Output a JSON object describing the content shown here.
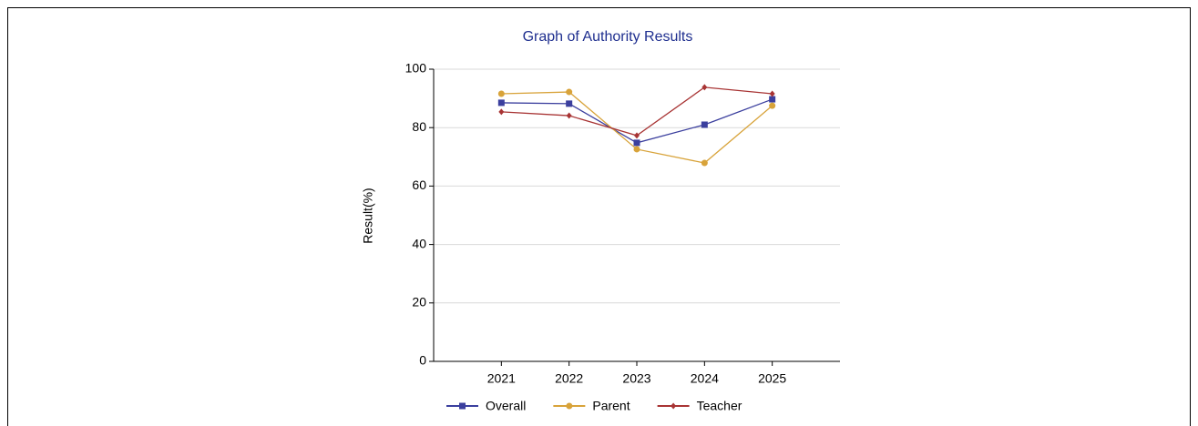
{
  "chart_data": {
    "type": "line",
    "title": "Graph of Authority Results",
    "y_label": "Result(%)",
    "categories": [
      "2021",
      "2022",
      "2023",
      "2024",
      "2025"
    ],
    "series": [
      {
        "name": "Overall",
        "color": "#3b3f9e",
        "marker": "square",
        "values": [
          88.5,
          88.2,
          74.8,
          81,
          89.7
        ]
      },
      {
        "name": "Parent",
        "color": "#d8a33a",
        "marker": "circle",
        "values": [
          91.6,
          92.2,
          72.6,
          67.9,
          87.5
        ]
      },
      {
        "name": "Teacher",
        "color": "#a83434",
        "marker": "diamond",
        "values": [
          85.4,
          84.1,
          77.3,
          93.8,
          91.6
        ]
      }
    ],
    "ylim": [
      0,
      100
    ],
    "yticks": [
      0,
      20,
      40,
      60,
      80,
      100
    ],
    "grid": true,
    "legend": "bottom"
  }
}
